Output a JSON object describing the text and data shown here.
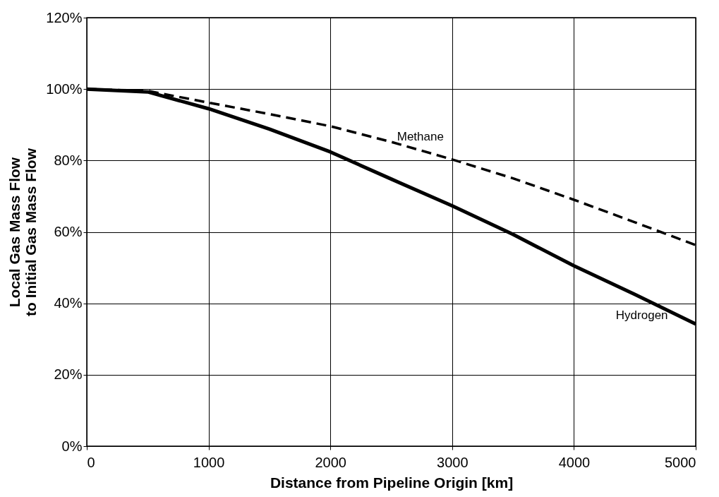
{
  "chart_data": {
    "type": "line",
    "xlabel": "Distance from Pipeline Origin [km]",
    "ylabel": "Local Gas Mass Flow\nto Initial Gas Mass Flow",
    "x": [
      0,
      500,
      1000,
      1500,
      2000,
      2500,
      3000,
      3500,
      4000,
      4500,
      5000
    ],
    "series": [
      {
        "name": "Methane",
        "color": "#000000",
        "line_style": "dashed",
        "values": [
          100,
          99.5,
          96.2,
          93,
          89.6,
          85.2,
          80.3,
          75,
          69,
          62.7,
          56.3
        ]
      },
      {
        "name": "Hydrogen",
        "color": "#000000",
        "line_style": "solid",
        "values": [
          100,
          99.2,
          94.5,
          88.8,
          82.4,
          74.8,
          67.3,
          59.3,
          50.5,
          42.5,
          34.2
        ]
      }
    ],
    "xlim": [
      0,
      5000
    ],
    "xticks": [
      0,
      1000,
      2000,
      3000,
      4000,
      5000
    ],
    "ylim": [
      0,
      120
    ],
    "yticks": [
      {
        "value": 0,
        "label": "0%"
      },
      {
        "value": 20,
        "label": "20%"
      },
      {
        "value": 40,
        "label": "40%"
      },
      {
        "value": 60,
        "label": "60%"
      },
      {
        "value": 80,
        "label": "80%"
      },
      {
        "value": 100,
        "label": "100%"
      },
      {
        "value": 120,
        "label": "120%"
      }
    ],
    "grid": true,
    "legend": false,
    "marker": "none"
  }
}
